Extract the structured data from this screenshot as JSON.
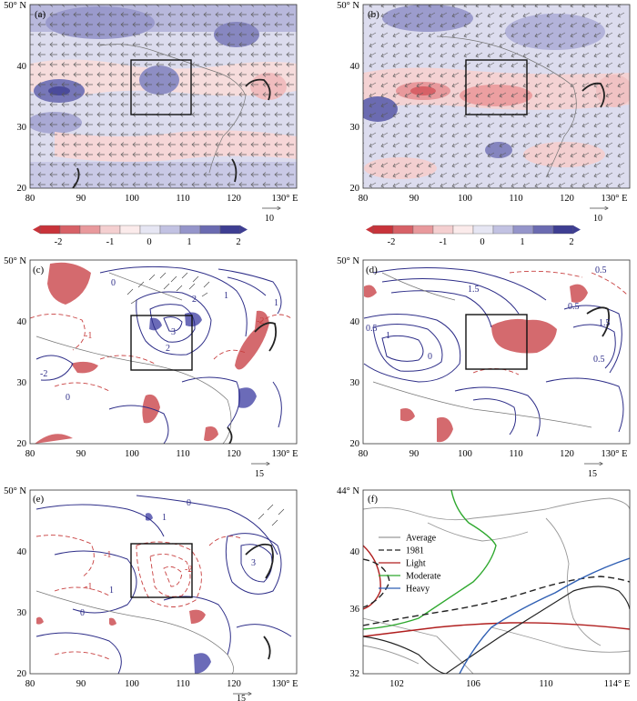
{
  "panels": {
    "a": {
      "tag": "(a)",
      "y_ticks": [
        "20",
        "30",
        "40",
        "50° N"
      ],
      "x_ticks": [
        "80",
        "90",
        "100",
        "110",
        "120",
        "130° E"
      ],
      "vector_ref": "10"
    },
    "b": {
      "tag": "(b)",
      "y_ticks": [
        "20",
        "30",
        "40",
        "50° N"
      ],
      "x_ticks": [
        "80",
        "90",
        "100",
        "110",
        "120",
        "130° E"
      ],
      "vector_ref": "10"
    },
    "c": {
      "tag": "(c)",
      "y_ticks": [
        "20",
        "30",
        "40",
        "50° N"
      ],
      "x_ticks": [
        "80",
        "90",
        "100",
        "110",
        "120",
        "130° E"
      ],
      "vector_ref": "15",
      "contour_labels": [
        "0",
        "2",
        "1",
        "-1",
        "-2",
        "3",
        "2",
        "0",
        "1",
        "-2"
      ]
    },
    "d": {
      "tag": "(d)",
      "y_ticks": [
        "20",
        "30",
        "40",
        "50° N"
      ],
      "x_ticks": [
        "80",
        "90",
        "100",
        "110",
        "120",
        "130° E"
      ],
      "vector_ref": "15",
      "contour_labels": [
        "0.5",
        "1.5",
        "0.5",
        "1",
        "0",
        "0.5",
        "1.5",
        "0.5"
      ]
    },
    "e": {
      "tag": "(e)",
      "y_ticks": [
        "20",
        "30",
        "40",
        "50° N"
      ],
      "x_ticks": [
        "80",
        "90",
        "100",
        "110",
        "120",
        "130° E"
      ],
      "vector_ref": "15",
      "contour_labels": [
        "0",
        "1",
        "-1",
        "-2",
        "1",
        "0",
        "3",
        "-1"
      ]
    },
    "f": {
      "tag": "(f)",
      "y_ticks": [
        "32",
        "36",
        "40",
        "44° N"
      ],
      "x_ticks": [
        "102",
        "106",
        "110",
        "114° E"
      ]
    }
  },
  "colorbar": {
    "ticks": [
      "-2",
      "-1",
      "0",
      "1",
      "2"
    ],
    "colors": [
      "#c8333a",
      "#d76167",
      "#e8999c",
      "#f4cfd0",
      "#fbebeb",
      "#e6e6f3",
      "#c2c2e2",
      "#9595ca",
      "#6b6bb1",
      "#3e3e92"
    ]
  },
  "legend": [
    {
      "label": "Average",
      "color": "#999999",
      "style": "solid"
    },
    {
      "label": "1981",
      "color": "#222222",
      "style": "dashed"
    },
    {
      "label": "Light",
      "color": "#b01e1e",
      "style": "solid"
    },
    {
      "label": "Moderate",
      "color": "#2ea82e",
      "style": "solid"
    },
    {
      "label": "Heavy",
      "color": "#2f5fb3",
      "style": "solid"
    }
  ]
}
